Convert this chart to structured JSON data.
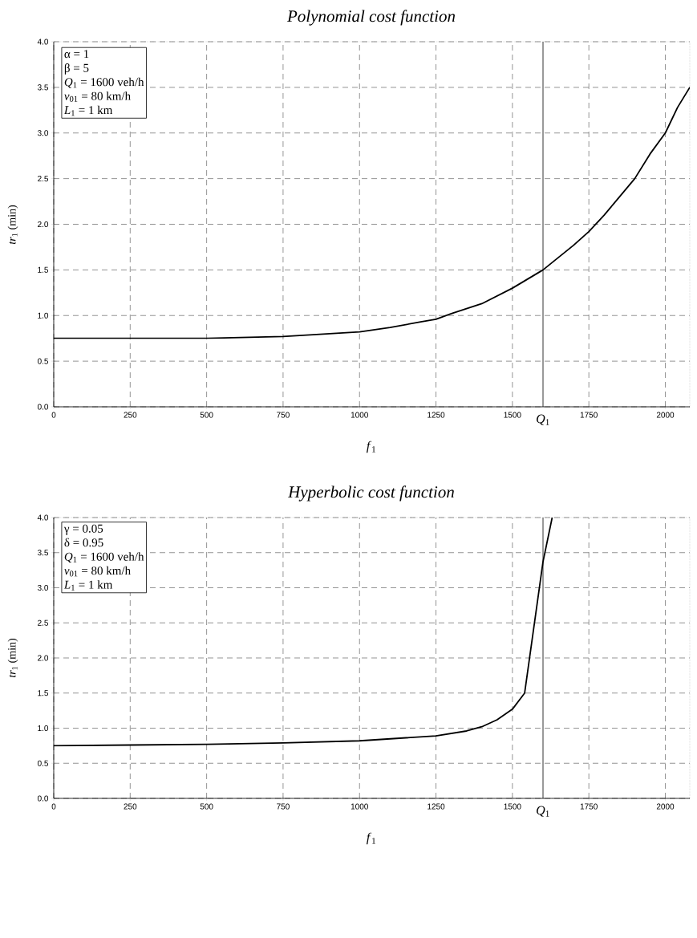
{
  "chart_data": [
    {
      "type": "line",
      "title": "Polynomial cost function",
      "xlabel": "*f*$_{1}$",
      "ylabel": "*tr*$_{1}$ (min)",
      "x": [
        0,
        250,
        500,
        750,
        1000,
        1100,
        1200,
        1250,
        1300,
        1400,
        1500,
        1600,
        1700,
        1750,
        1800,
        1850,
        1900,
        1950,
        2000,
        2040,
        2080
      ],
      "series": [
        {
          "color": "#000000",
          "values": [
            0.75,
            0.75,
            0.75,
            0.77,
            0.82,
            0.87,
            0.93,
            0.96,
            1.02,
            1.13,
            1.3,
            1.5,
            1.77,
            1.92,
            2.1,
            2.3,
            2.5,
            2.77,
            3.0,
            3.28,
            3.5
          ]
        }
      ],
      "xlim": [
        0,
        2080
      ],
      "ylim": [
        0,
        4
      ],
      "xticks": [
        0,
        250,
        500,
        750,
        1000,
        1250,
        1500,
        1750,
        2000
      ],
      "yticks": [
        {
          "value": 0,
          "label": "0.0"
        },
        {
          "value": 0.5,
          "label": "0.5"
        },
        {
          "value": 1,
          "label": "1.0"
        },
        {
          "value": 1.5,
          "label": "1.5"
        },
        {
          "value": 2,
          "label": "2.0"
        },
        {
          "value": 2.5,
          "label": "2.5"
        },
        {
          "value": 3,
          "label": "3.0"
        },
        {
          "value": 3.5,
          "label": "3.5"
        },
        {
          "value": 4,
          "label": "4.0"
        }
      ],
      "grid": true,
      "line_style": "solid",
      "ref_lines": [
        {
          "axis": "x",
          "value": 1600,
          "label": "*Q*$_{1}$",
          "color": "#000000"
        }
      ],
      "annotations": [
        "α = 1",
        "β = 5",
        "*Q*$_{1}$ = 1600 veh/h",
        "*v*$_{01}$ = 80 km/h",
        "*L*$_{1}$ = 1 km"
      ]
    },
    {
      "type": "line",
      "title": "Hyperbolic cost function",
      "xlabel": "*f*$_{1}$",
      "ylabel": "*tr*$_{1}$ (min)",
      "x": [
        0,
        250,
        500,
        750,
        1000,
        1250,
        1350,
        1400,
        1450,
        1500,
        1540,
        1600,
        1630
      ],
      "series": [
        {
          "color": "#000000",
          "values": [
            0.75,
            0.76,
            0.77,
            0.79,
            0.82,
            0.89,
            0.96,
            1.02,
            1.12,
            1.27,
            1.5,
            3.37,
            4.0
          ]
        }
      ],
      "xlim": [
        0,
        2080
      ],
      "ylim": [
        0,
        4
      ],
      "xticks": [
        0,
        250,
        500,
        750,
        1000,
        1250,
        1500,
        1750,
        2000
      ],
      "yticks": [
        {
          "value": 0,
          "label": "0.0"
        },
        {
          "value": 0.5,
          "label": "0.5"
        },
        {
          "value": 1,
          "label": "1.0"
        },
        {
          "value": 1.5,
          "label": "1.5"
        },
        {
          "value": 2,
          "label": "2.0"
        },
        {
          "value": 2.5,
          "label": "2.5"
        },
        {
          "value": 3,
          "label": "3.0"
        },
        {
          "value": 3.5,
          "label": "3.5"
        },
        {
          "value": 4,
          "label": "4.0"
        }
      ],
      "grid": true,
      "line_style": "solid",
      "ref_lines": [
        {
          "axis": "x",
          "value": 1600,
          "label": "*Q*$_{1}$",
          "color": "#000000"
        }
      ],
      "annotations": [
        "γ = 0.05",
        "δ = 0.95",
        "*Q*$_{1}$ = 1600 veh/h",
        "*v*$_{01}$ = 80 km/h",
        "*L*$_{1}$ = 1 km"
      ]
    }
  ]
}
